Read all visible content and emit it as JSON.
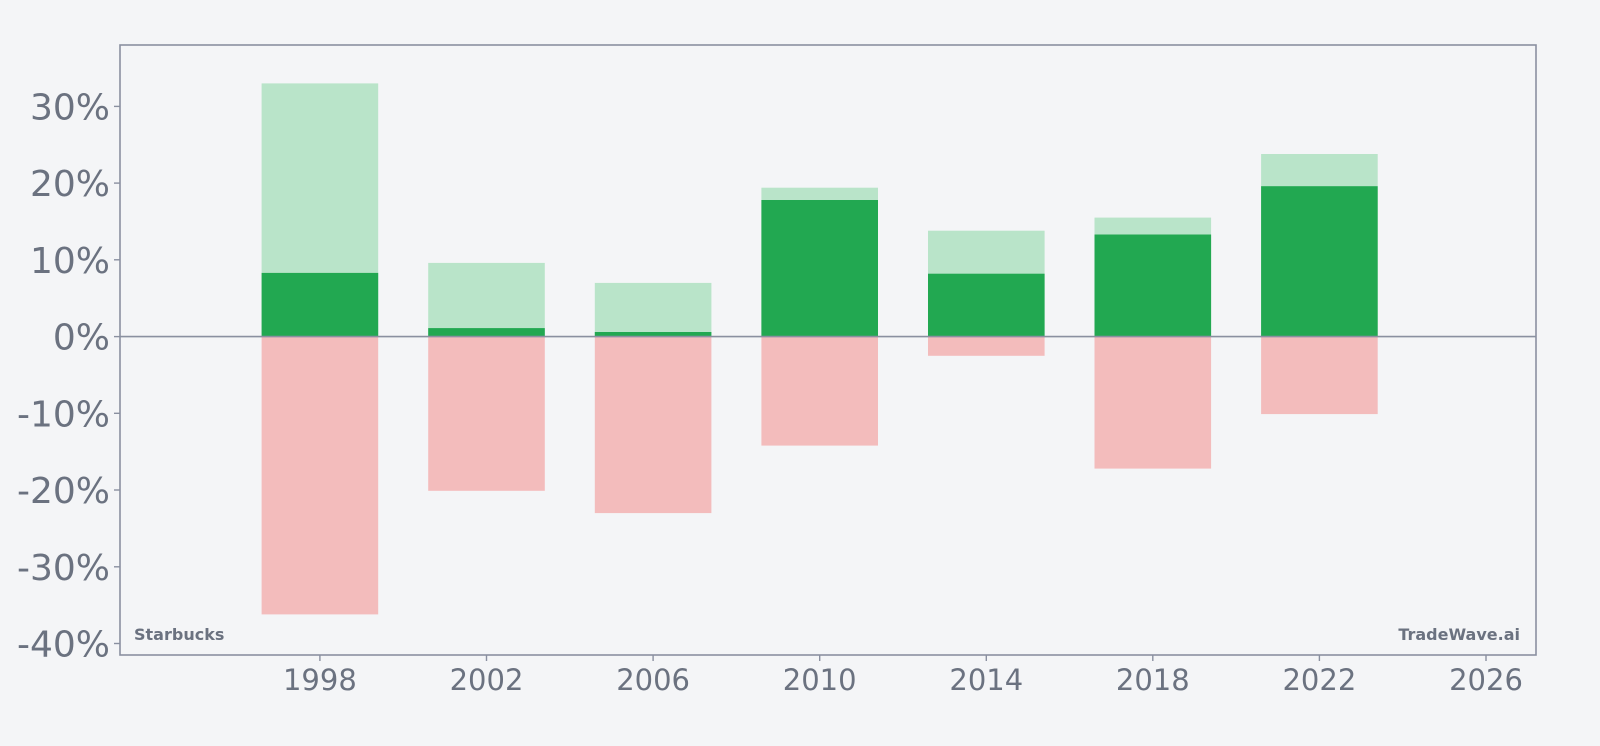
{
  "chart_data": {
    "type": "bar",
    "x": [
      1998,
      2002,
      2006,
      2010,
      2014,
      2018,
      2022
    ],
    "series": [
      {
        "values": [
          33.0,
          9.6,
          7.0,
          19.4,
          13.8,
          15.5,
          23.8
        ]
      },
      {
        "values": [
          8.3,
          1.1,
          0.6,
          17.8,
          8.2,
          13.3,
          19.6
        ]
      },
      {
        "values": [
          -36.2,
          -20.1,
          -23.0,
          -14.2,
          -2.5,
          -17.2,
          -10.1
        ]
      }
    ],
    "xlim": [
      1993.2,
      2027.2
    ],
    "xticks": [
      1998,
      2002,
      2006,
      2010,
      2014,
      2018,
      2022,
      2026
    ],
    "xtick_labels": [
      "1998",
      "2002",
      "2006",
      "2010",
      "2014",
      "2018",
      "2022",
      "2026"
    ],
    "ylim": [
      -41.5,
      38
    ],
    "yticks": [
      30,
      20,
      10,
      0,
      -10,
      -20,
      -30,
      -40
    ],
    "ytick_labels": [
      "30%",
      "20%",
      "10%",
      "0%",
      "-10%",
      "-20%",
      "-30%",
      "-40%"
    ],
    "grid": false,
    "colors": {
      "upper": "#b9e4c9",
      "mid": "#22a851",
      "lower": "#f3bcbc",
      "axis": "#8a90a0",
      "zero_line": "#8a90a0",
      "text": "#6b7280",
      "background": "#f4f5f7"
    },
    "annotations": {
      "bottom_left": "Starbucks",
      "bottom_right": "TradeWave.ai"
    }
  }
}
